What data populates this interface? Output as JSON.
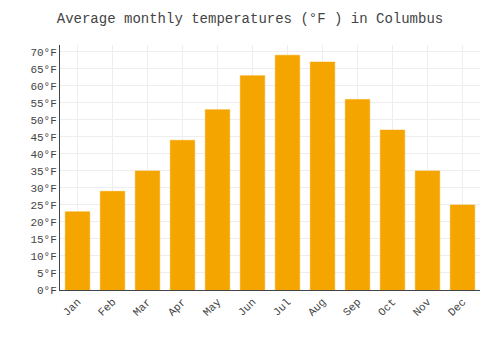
{
  "chart_data": {
    "type": "bar",
    "title": "Average monthly temperatures (°F ) in Columbus",
    "categories": [
      "Jan",
      "Feb",
      "Mar",
      "Apr",
      "May",
      "Jun",
      "Jul",
      "Aug",
      "Sep",
      "Oct",
      "Nov",
      "Dec"
    ],
    "values": [
      23,
      29,
      35,
      44,
      53,
      63,
      69,
      67,
      56,
      47,
      35,
      25
    ],
    "color": "#F5A500",
    "ylim": [
      0,
      72
    ],
    "yticks": [
      {
        "value": 0,
        "label": "0°F"
      },
      {
        "value": 5,
        "label": "5°F"
      },
      {
        "value": 10,
        "label": "10°F"
      },
      {
        "value": 15,
        "label": "15°F"
      },
      {
        "value": 20,
        "label": "20°F"
      },
      {
        "value": 25,
        "label": "25°F"
      },
      {
        "value": 30,
        "label": "30°F"
      },
      {
        "value": 35,
        "label": "35°F"
      },
      {
        "value": 40,
        "label": "40°F"
      },
      {
        "value": 45,
        "label": "45°F"
      },
      {
        "value": 50,
        "label": "50°F"
      },
      {
        "value": 55,
        "label": "55°F"
      },
      {
        "value": 60,
        "label": "60°F"
      },
      {
        "value": 65,
        "label": "65°F"
      },
      {
        "value": 70,
        "label": "70°F"
      }
    ],
    "grid": true
  }
}
